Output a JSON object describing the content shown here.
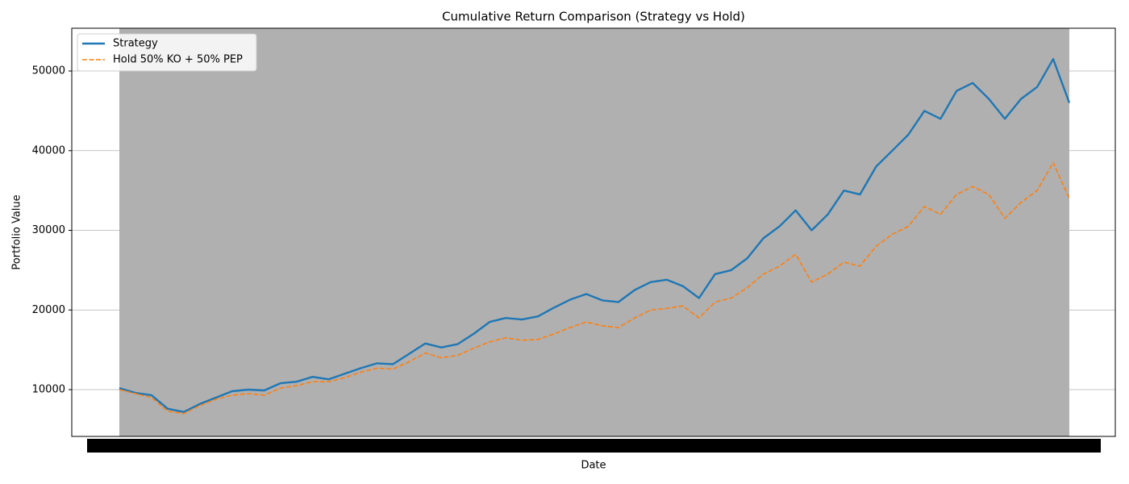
{
  "chart_data": {
    "type": "line",
    "title": "Cumulative Return Comparison (Strategy vs Hold)",
    "xlabel": "Date",
    "ylabel": "Portfolio Value",
    "categories": [
      null,
      null,
      null,
      null,
      null,
      null,
      null,
      null,
      null,
      null,
      null,
      null,
      null,
      null,
      null,
      null,
      null,
      null,
      null,
      null,
      null,
      null,
      null,
      null,
      null,
      null,
      null,
      null,
      null,
      null,
      null,
      null,
      null,
      null,
      null,
      null,
      null,
      null,
      null,
      null,
      null,
      null,
      null,
      null,
      null,
      null,
      null,
      null,
      null,
      null,
      null,
      null,
      null,
      null,
      null,
      null,
      null,
      null,
      null,
      null
    ],
    "series": [
      {
        "name": "Strategy",
        "color": "#1f77b4",
        "dashed": false,
        "values": [
          10200,
          9600,
          9300,
          7600,
          7200,
          8200,
          9000,
          9800,
          10000,
          9900,
          10800,
          11000,
          11600,
          11300,
          12000,
          12700,
          13300,
          13200,
          14500,
          15800,
          15300,
          15700,
          17000,
          18500,
          19000,
          18800,
          19200,
          20300,
          21300,
          22000,
          21200,
          21000,
          22500,
          23500,
          23800,
          23000,
          21500,
          24500,
          25000,
          26500,
          29000,
          30500,
          32500,
          30000,
          32000,
          35000,
          34500,
          38000,
          40000,
          42000,
          45000,
          44000,
          47500,
          48500,
          46500,
          44000,
          46500,
          48000,
          51500,
          46000
        ]
      },
      {
        "name": "Hold 50% KO + 50% PEP",
        "color": "#ff7f0e",
        "dashed": true,
        "values": [
          10000,
          9500,
          9000,
          7300,
          7000,
          8000,
          8800,
          9300,
          9500,
          9300,
          10200,
          10500,
          11000,
          11000,
          11500,
          12200,
          12700,
          12600,
          13500,
          14600,
          14000,
          14300,
          15200,
          16000,
          16500,
          16200,
          16300,
          17000,
          17800,
          18500,
          18000,
          17800,
          19000,
          20000,
          20200,
          20500,
          19000,
          21000,
          21500,
          22800,
          24500,
          25500,
          27000,
          23500,
          24500,
          26000,
          25500,
          28000,
          29500,
          30500,
          33000,
          32000,
          34500,
          35500,
          34500,
          31500,
          33500,
          35000,
          38500,
          34000
        ]
      }
    ],
    "ylim": [
      4130,
      55370
    ],
    "yticks": [
      10000,
      20000,
      30000,
      40000,
      50000
    ],
    "grid": true,
    "legend": "upper left"
  }
}
